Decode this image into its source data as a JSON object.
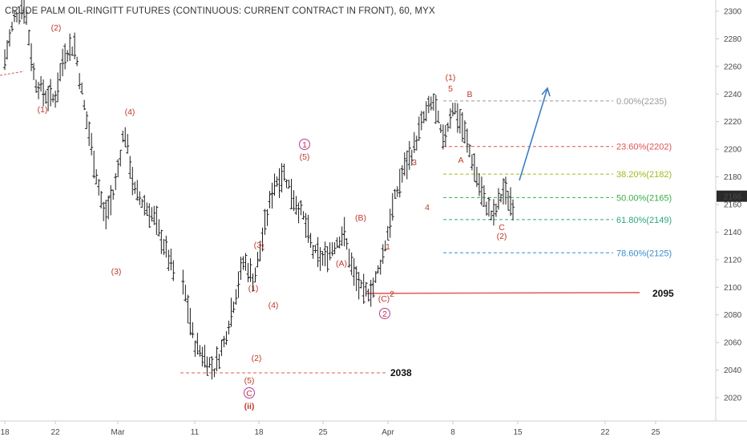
{
  "chart_title": "CRUDE PALM OIL-RINGITT FUTURES (CONTINUOUS: CURRENT CONTRACT IN FRONT), 60, MYX",
  "colors": {
    "bars": "#1a1a1a",
    "wave_red": "#c0392b",
    "wave_magenta": "#b03aa3",
    "support_red": "#e05b5b",
    "arrow_blue": "#3d7fc4",
    "price_tag_bg": "#2a2a2a"
  },
  "chart_data": {
    "type": "ohlc",
    "ylim": [
      2005,
      2310
    ],
    "y_ticks": [
      2020,
      2040,
      2060,
      2080,
      2100,
      2120,
      2140,
      2160,
      2180,
      2200,
      2220,
      2240,
      2260,
      2280,
      2300
    ],
    "x_ticks": [
      "18",
      "22",
      "Mar",
      "11",
      "18",
      "25",
      "Apr",
      "8",
      "15",
      "22",
      "25"
    ],
    "current_price": 2166,
    "fib_levels": [
      {
        "label": "0.00%(2235)",
        "value": 2235,
        "color": "#9a9a9a"
      },
      {
        "label": "23.60%(2202)",
        "value": 2202,
        "color": "#e05252"
      },
      {
        "label": "38.20%(2182)",
        "value": 2182,
        "color": "#a8b820"
      },
      {
        "label": "50.00%(2165)",
        "value": 2165,
        "color": "#3aae4a"
      },
      {
        "label": "61.80%(2149)",
        "value": 2149,
        "color": "#2ea87a"
      },
      {
        "label": "78.60%(2125)",
        "value": 2125,
        "color": "#3a8ccc"
      }
    ],
    "support_levels": [
      {
        "label": "2095",
        "value": 2095
      },
      {
        "label": "2038",
        "value": 2038
      }
    ],
    "wave_labels": [
      {
        "text": "(2)",
        "day": 22,
        "price": 2285,
        "color": "red"
      },
      {
        "text": "(1)",
        "day": 18.9,
        "price": 2225,
        "color": "red"
      },
      {
        "text": "(4)",
        "day": 35,
        "price": 2220,
        "color": "red"
      },
      {
        "text": "(3)",
        "day": 31.5,
        "price": 2110,
        "color": "red"
      },
      {
        "text": "(3)",
        "day": 48.2,
        "price": 2123,
        "color": "red"
      },
      {
        "text": "(1)",
        "day": 47.8,
        "price": 2099,
        "color": "red"
      },
      {
        "text": "(4)",
        "day": 50,
        "price": 2081,
        "color": "red"
      },
      {
        "text": "(2)",
        "day": 49,
        "price": 2053,
        "color": "red"
      },
      {
        "text": "(5)",
        "day": 47,
        "price": 2029,
        "color": "red"
      },
      {
        "text": "(ii)",
        "day": 47,
        "price": 2011,
        "color": "darkred"
      },
      {
        "text": "C",
        "day": 47,
        "price": 2020,
        "color": "magenta-circle"
      },
      {
        "text": "1",
        "day": 55,
        "price": 2200,
        "color": "magenta-circle"
      },
      {
        "text": "(5)",
        "day": 55,
        "price": 2190,
        "color": "red"
      },
      {
        "text": "(B)",
        "day": 62,
        "price": 2146,
        "color": "red"
      },
      {
        "text": "(A)",
        "day": 60,
        "price": 2118,
        "color": "red"
      },
      {
        "text": "1",
        "day": 66.2,
        "price": 2126,
        "color": "red"
      },
      {
        "text": "(C)",
        "day": 66,
        "price": 2092,
        "color": "red"
      },
      {
        "text": "2",
        "day": 66.5,
        "price": 2096,
        "color": "red"
      },
      {
        "text": "2",
        "day": 66,
        "price": 2083,
        "color": "magenta-circle"
      },
      {
        "text": "3",
        "day": 70.5,
        "price": 2187,
        "color": "red"
      },
      {
        "text": "4",
        "day": 72.5,
        "price": 2160,
        "color": "red"
      },
      {
        "text": "(1)",
        "day": 76,
        "price": 2252,
        "color": "red"
      },
      {
        "text": "5",
        "day": 76,
        "price": 2240,
        "color": "red"
      },
      {
        "text": "B",
        "day": 78.2,
        "price": 2233,
        "color": "red"
      },
      {
        "text": "A",
        "day": 77.2,
        "price": 2188,
        "color": "red"
      },
      {
        "text": "C",
        "day": 82.2,
        "price": 2142,
        "color": "red"
      },
      {
        "text": "(2)",
        "day": 82.2,
        "price": 2132,
        "color": "red"
      }
    ],
    "projection": {
      "from_day": 85,
      "from_price": 2178,
      "to_day": 89.3,
      "to_price": 2244
    }
  }
}
